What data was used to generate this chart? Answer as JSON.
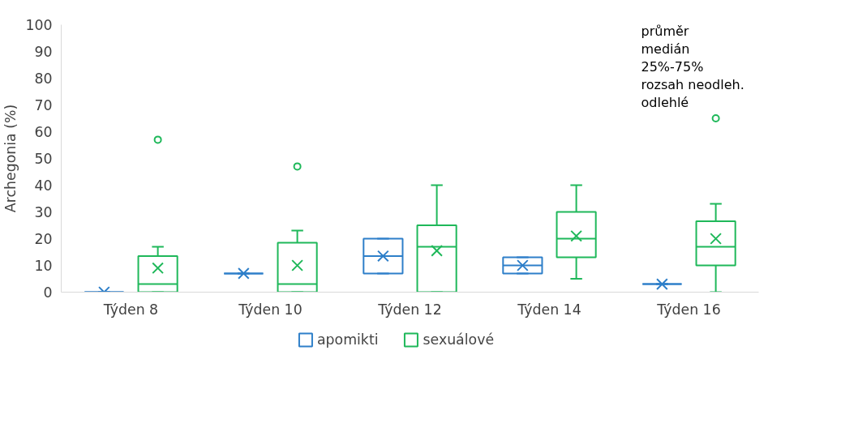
{
  "chart_data": {
    "type": "box",
    "ylabel": "Archegonia (%)",
    "categories": [
      "Týden 8",
      "Týden 10",
      "Týden 12",
      "Týden 14",
      "Týden 16"
    ],
    "series": [
      {
        "name": "apomikti",
        "color": "#2e7fc9",
        "boxes": [
          {
            "low": 0,
            "q1": 0,
            "median": 0,
            "q3": 0,
            "high": 0,
            "mean": 0
          },
          {
            "low": 7,
            "q1": 7,
            "median": 7,
            "q3": 7,
            "high": 7,
            "mean": 7
          },
          {
            "low": 7,
            "q1": 7,
            "median": 13.5,
            "q3": 20,
            "high": 20,
            "mean": 13.5
          },
          {
            "low": 7,
            "q1": 7,
            "median": 10,
            "q3": 13,
            "high": 13,
            "mean": 10
          },
          {
            "low": 3,
            "q1": 3,
            "median": 3,
            "q3": 3,
            "high": 3,
            "mean": 3
          }
        ]
      },
      {
        "name": "sexuálové",
        "color": "#1fb85a",
        "boxes": [
          {
            "low": 0,
            "q1": 0,
            "median": 3,
            "q3": 13.5,
            "high": 17,
            "mean": 9,
            "outliers": [
              57
            ]
          },
          {
            "low": 0,
            "q1": 0,
            "median": 3,
            "q3": 18.5,
            "high": 23,
            "mean": 10,
            "outliers": [
              47
            ]
          },
          {
            "low": 0,
            "q1": 0,
            "median": 17,
            "q3": 25,
            "high": 40,
            "mean": 15.5
          },
          {
            "low": 5,
            "q1": 13,
            "median": 20,
            "q3": 30,
            "high": 40,
            "mean": 21
          },
          {
            "low": 0,
            "q1": 10,
            "median": 17,
            "q3": 26.5,
            "high": 33,
            "mean": 20,
            "outliers": [
              65
            ]
          }
        ]
      }
    ],
    "ylim": [
      0,
      100
    ],
    "yticks": [
      0,
      10,
      20,
      30,
      40,
      50,
      60,
      70,
      80,
      90,
      100
    ],
    "legend": "bottom",
    "annotations": [
      "průměr",
      "medián",
      "25%-75%",
      "rozsah neodleh.",
      "odlehlé"
    ]
  }
}
